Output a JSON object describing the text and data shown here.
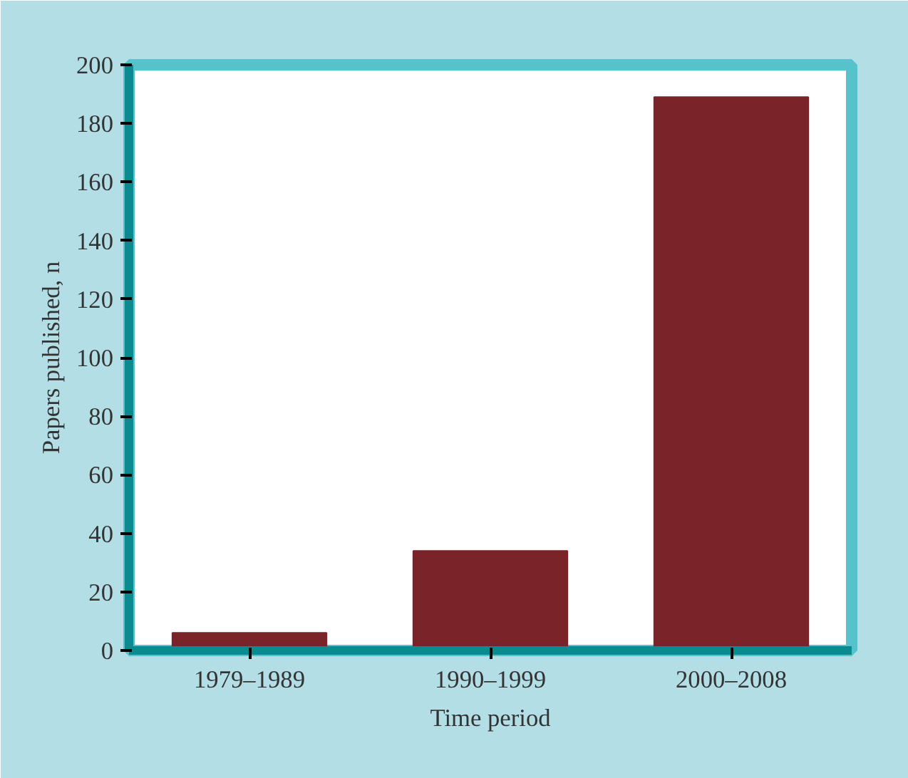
{
  "chart_data": {
    "type": "bar",
    "xlabel": "Time period",
    "ylabel": "Papers published, n",
    "categories": [
      "1979–1989",
      "1990–1999",
      "2000–2008"
    ],
    "values": [
      6,
      34,
      189
    ],
    "color": "#7a2328",
    "ylim": [
      0,
      200
    ],
    "yticks": [
      0,
      20,
      40,
      60,
      80,
      100,
      120,
      140,
      160,
      180,
      200
    ],
    "grid": false
  }
}
